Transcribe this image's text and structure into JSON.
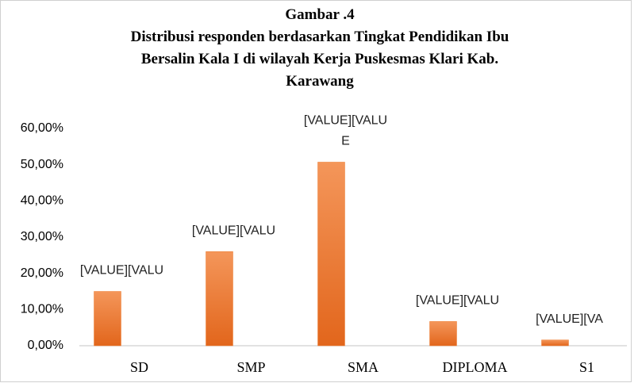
{
  "chart_data": {
    "type": "bar",
    "title": [
      "Gambar .4",
      "Distribusi responden berdasarkan Tingkat Pendidikan Ibu",
      "Bersalin Kala I  di wilayah Kerja Puskesmas Klari Kab.",
      "Karawang"
    ],
    "categories": [
      "SD",
      "SMP",
      "SMA",
      "DIPLOMA",
      "S1"
    ],
    "values": [
      15,
      26,
      50.7,
      6.7,
      1.6
    ],
    "value_labels": [
      [
        "[VALUE][VALU"
      ],
      [
        "[VALUE][VALU"
      ],
      [
        "[VALUE][VALU",
        "E"
      ],
      [
        "[VALUE][VALU"
      ],
      [
        "[VALUE][VA"
      ]
    ],
    "color": "#ed7d31",
    "ylim": [
      0,
      60
    ],
    "yticks": [
      {
        "value": 0,
        "label": "0,00%"
      },
      {
        "value": 10,
        "label": "10,00%"
      },
      {
        "value": 20,
        "label": "20,00%"
      },
      {
        "value": 30,
        "label": "30,00%"
      },
      {
        "value": 40,
        "label": "40,00%"
      },
      {
        "value": 50,
        "label": "50,00%"
      },
      {
        "value": 60,
        "label": "60,00%"
      }
    ]
  }
}
